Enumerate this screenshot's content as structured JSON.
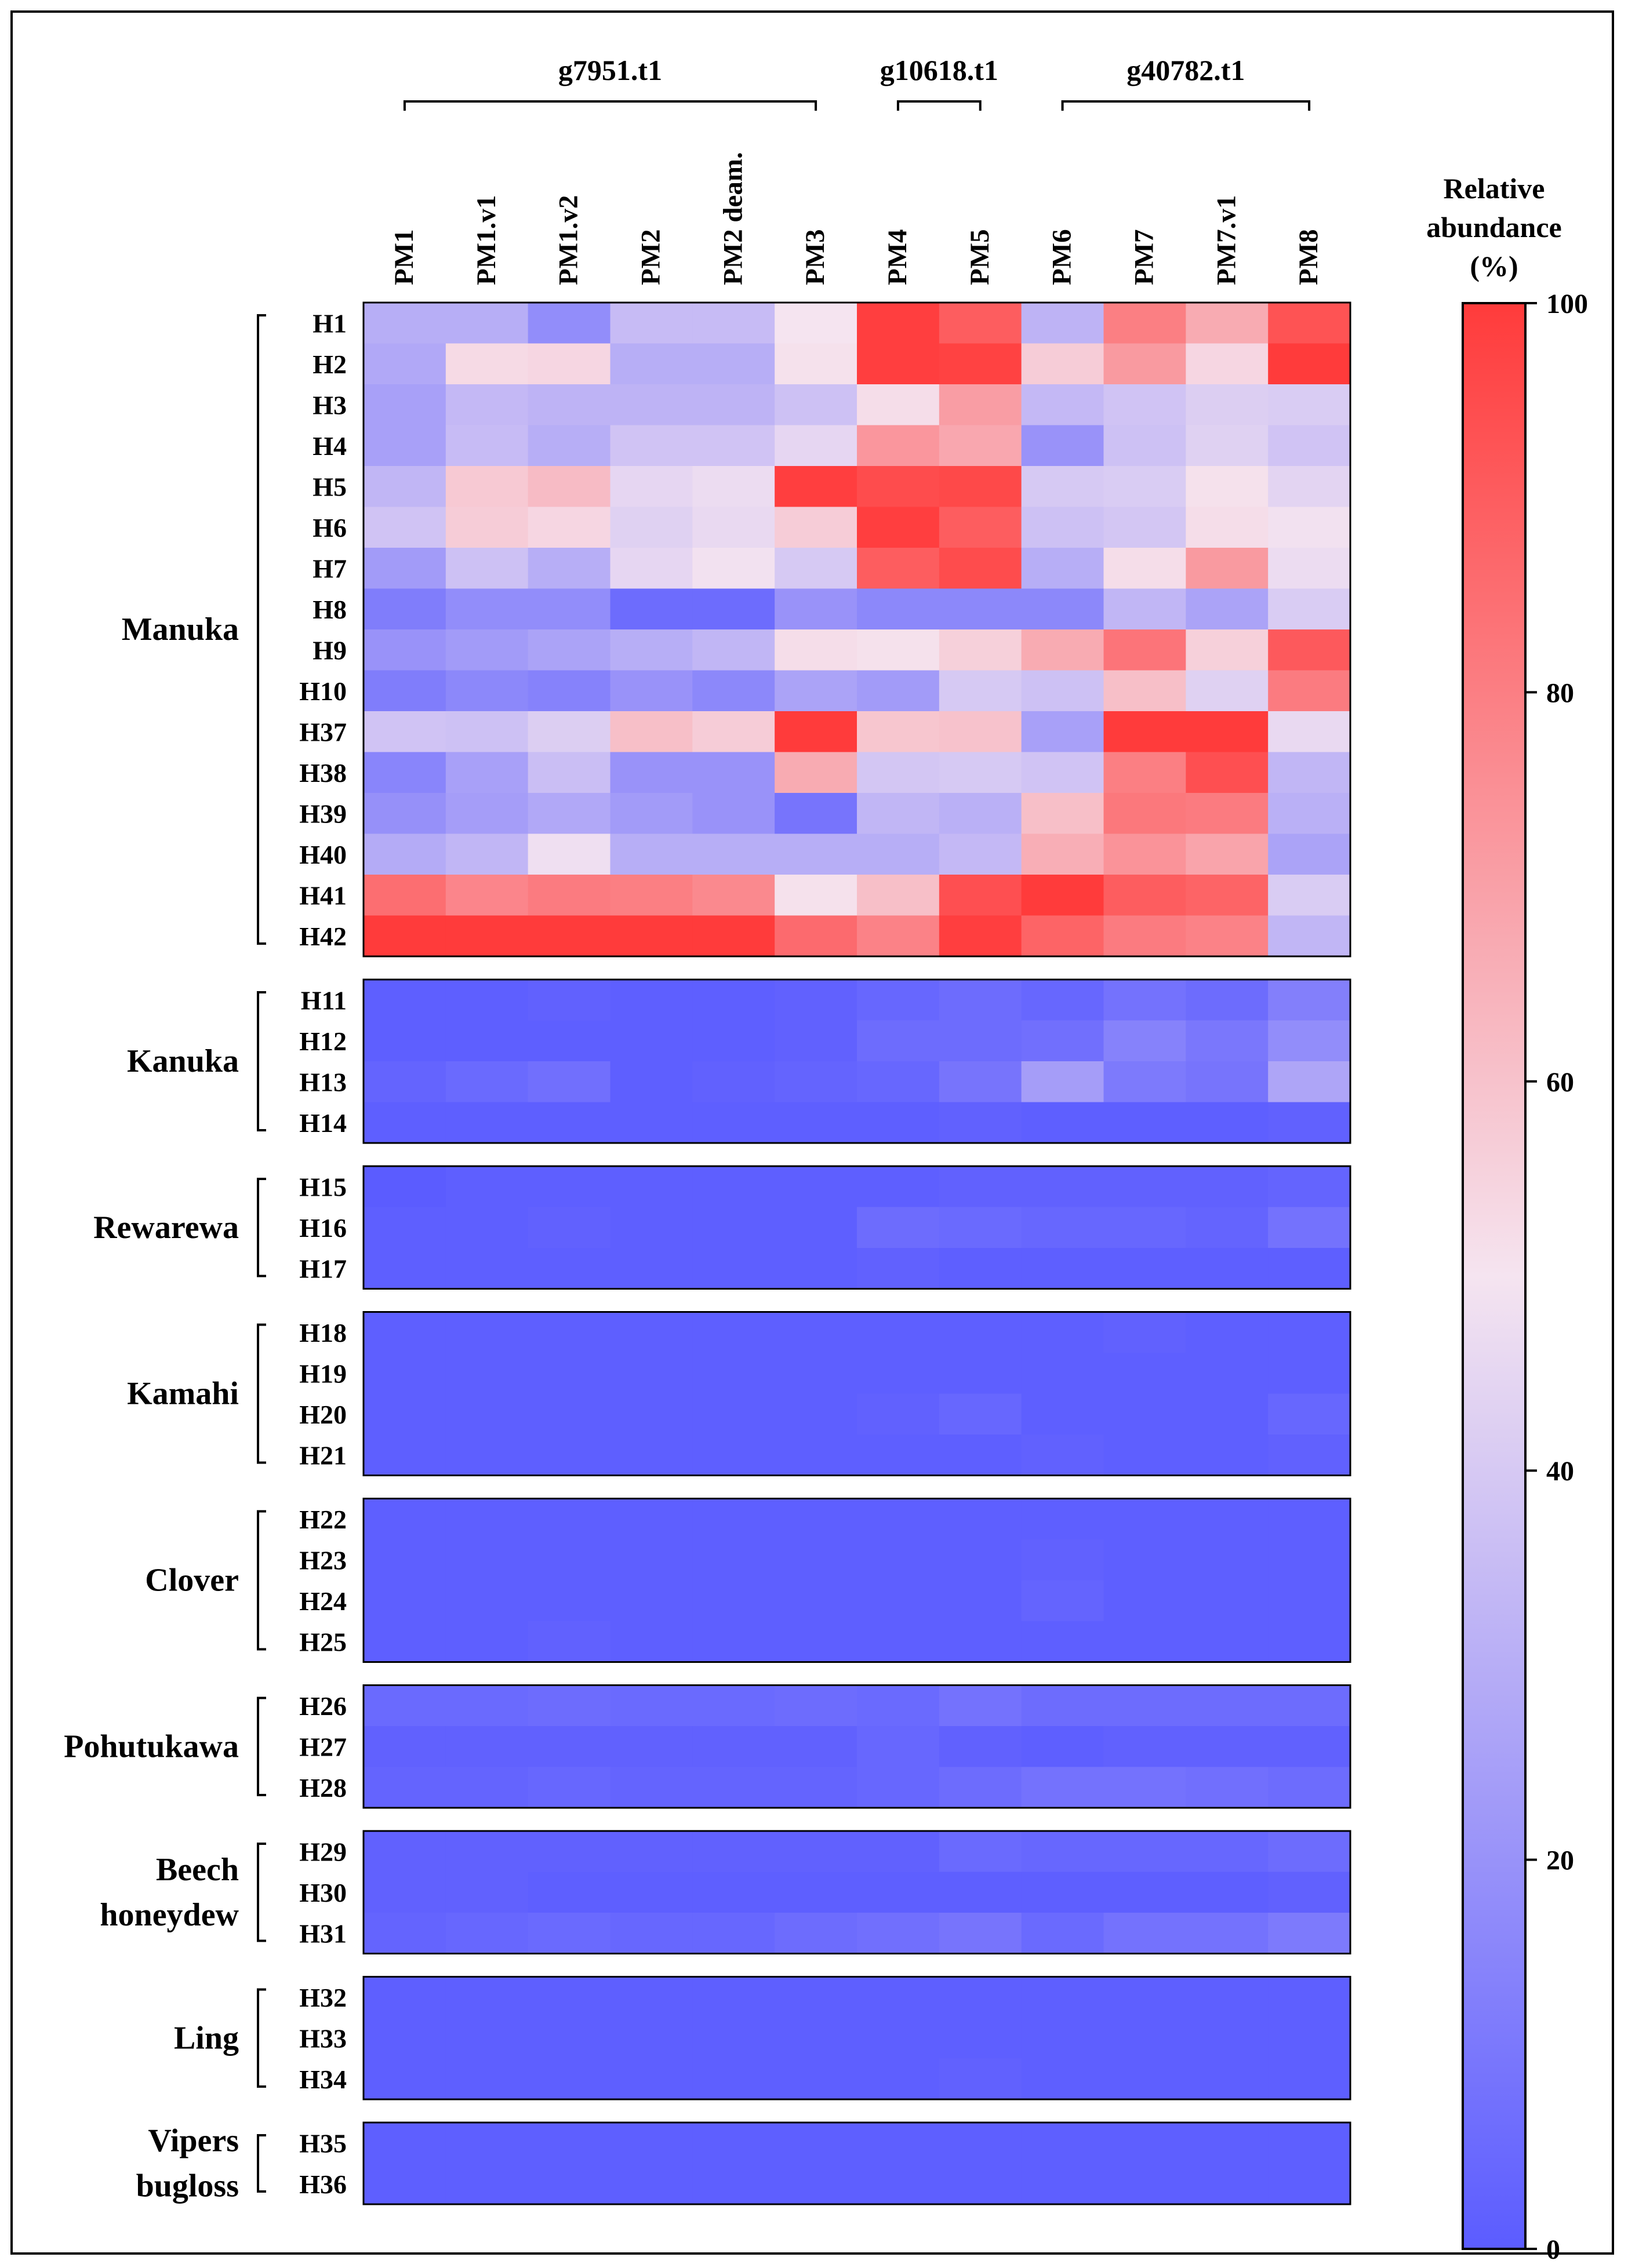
{
  "chart_data": {
    "type": "heatmap",
    "columns": [
      "PM1",
      "PM1.v1",
      "PM1.v2",
      "PM2",
      "PM2 deam.",
      "PM3",
      "PM4",
      "PM5",
      "PM6",
      "PM7",
      "PM7.v1",
      "PM8"
    ],
    "column_groups": [
      {
        "label": "g7951.t1",
        "columns": [
          "PM1",
          "PM1.v1",
          "PM1.v2",
          "PM2",
          "PM2 deam.",
          "PM3"
        ]
      },
      {
        "label": "g10618.t1",
        "columns": [
          "PM4",
          "PM5"
        ]
      },
      {
        "label": "g40782.t1",
        "columns": [
          "PM6",
          "PM7",
          "PM7.v1",
          "PM8"
        ]
      }
    ],
    "colorbar": {
      "title_lines": [
        "Relative",
        "abundance",
        "(%)"
      ],
      "ticks": [
        0,
        20,
        40,
        60,
        80,
        100
      ],
      "range": [
        0,
        100
      ],
      "colors": {
        "low": "#5b5cff",
        "mid": "#f5e4f0",
        "high": "#ff3b3b"
      }
    },
    "groups": [
      {
        "label_lines": [
          "Manuka"
        ],
        "rows": [
          {
            "label": "H1",
            "values": [
              30,
              30,
              18,
              35,
              35,
              50,
              99,
              90,
              32,
              80,
              67,
              93
            ]
          },
          {
            "label": "H2",
            "values": [
              28,
              53,
              54,
              30,
              30,
              51,
              99,
              98,
              57,
              72,
              54,
              100
            ]
          },
          {
            "label": "H3",
            "values": [
              25,
              34,
              32,
              32,
              32,
              37,
              52,
              71,
              34,
              38,
              42,
              41
            ]
          },
          {
            "label": "H4",
            "values": [
              25,
              35,
              30,
              38,
              38,
              45,
              73,
              68,
              20,
              37,
              43,
              38
            ]
          },
          {
            "label": "H5",
            "values": [
              33,
              58,
              62,
              45,
              47,
              99,
              95,
              96,
              40,
              41,
              51,
              44
            ]
          },
          {
            "label": "H6",
            "values": [
              38,
              57,
              54,
              43,
              46,
              57,
              99,
              90,
              37,
              39,
              52,
              49
            ]
          },
          {
            "label": "H7",
            "values": [
              23,
              37,
              30,
              45,
              49,
              40,
              90,
              95,
              30,
              52,
              72,
              47
            ]
          },
          {
            "label": "H8",
            "values": [
              12,
              18,
              18,
              6,
              6,
              20,
              16,
              16,
              16,
              33,
              26,
              41
            ]
          },
          {
            "label": "H9",
            "values": [
              20,
              23,
              26,
              30,
              33,
              52,
              51,
              56,
              67,
              83,
              56,
              91
            ]
          },
          {
            "label": "H10",
            "values": [
              12,
              16,
              14,
              20,
              16,
              26,
              23,
              40,
              37,
              61,
              43,
              81
            ]
          },
          {
            "label": "H37",
            "values": [
              38,
              37,
              42,
              61,
              57,
              100,
              59,
              60,
              25,
              100,
              100,
              46
            ]
          },
          {
            "label": "H38",
            "values": [
              15,
              25,
              36,
              20,
              20,
              67,
              39,
              40,
              38,
              80,
              94,
              33
            ]
          },
          {
            "label": "H39",
            "values": [
              19,
              24,
              28,
              23,
              20,
              9,
              33,
              31,
              61,
              82,
              81,
              31
            ]
          },
          {
            "label": "H40",
            "values": [
              29,
              33,
              48,
              30,
              30,
              30,
              30,
              34,
              66,
              74,
              69,
              26
            ]
          },
          {
            "label": "H41",
            "values": [
              85,
              78,
              81,
              80,
              77,
              51,
              61,
              94,
              100,
              90,
              88,
              41
            ]
          },
          {
            "label": "H42",
            "values": [
              100,
              100,
              100,
              100,
              100,
              86,
              79,
              99,
              88,
              81,
              79,
              33
            ]
          }
        ]
      },
      {
        "label_lines": [
          "Kanuka"
        ],
        "rows": [
          {
            "label": "H11",
            "values": [
              1,
              1,
              2,
              1,
              1,
              2,
              4,
              6,
              4,
              8,
              6,
              13
            ]
          },
          {
            "label": "H12",
            "values": [
              1,
              1,
              1,
              1,
              1,
              2,
              6,
              6,
              7,
              14,
              10,
              18
            ]
          },
          {
            "label": "H13",
            "values": [
              3,
              5,
              7,
              1,
              2,
              3,
              4,
              9,
              24,
              11,
              9,
              27
            ]
          },
          {
            "label": "H14",
            "values": [
              1,
              1,
              1,
              1,
              1,
              1,
              1,
              2,
              1,
              1,
              1,
              2
            ]
          }
        ]
      },
      {
        "label_lines": [
          "Rewarewa"
        ],
        "rows": [
          {
            "label": "H15",
            "values": [
              0,
              1,
              1,
              1,
              1,
              1,
              1,
              2,
              2,
              2,
              2,
              3
            ]
          },
          {
            "label": "H16",
            "values": [
              1,
              1,
              2,
              1,
              1,
              1,
              6,
              5,
              4,
              4,
              3,
              8
            ]
          },
          {
            "label": "H17",
            "values": [
              1,
              1,
              1,
              1,
              1,
              1,
              2,
              1,
              1,
              1,
              1,
              1
            ]
          }
        ]
      },
      {
        "label_lines": [
          "Kamahi"
        ],
        "rows": [
          {
            "label": "H18",
            "values": [
              1,
              1,
              1,
              1,
              1,
              1,
              1,
              1,
              1,
              2,
              1,
              1
            ]
          },
          {
            "label": "H19",
            "values": [
              1,
              1,
              1,
              1,
              1,
              1,
              1,
              1,
              1,
              1,
              1,
              1
            ]
          },
          {
            "label": "H20",
            "values": [
              1,
              1,
              1,
              1,
              1,
              1,
              2,
              4,
              1,
              1,
              1,
              4
            ]
          },
          {
            "label": "H21",
            "values": [
              1,
              1,
              1,
              1,
              1,
              1,
              1,
              1,
              2,
              1,
              1,
              2
            ]
          }
        ]
      },
      {
        "label_lines": [
          "Clover"
        ],
        "rows": [
          {
            "label": "H22",
            "values": [
              1,
              1,
              1,
              1,
              1,
              1,
              1,
              1,
              1,
              1,
              1,
              1
            ]
          },
          {
            "label": "H23",
            "values": [
              1,
              1,
              1,
              1,
              1,
              1,
              1,
              1,
              2,
              1,
              1,
              1
            ]
          },
          {
            "label": "H24",
            "values": [
              1,
              1,
              1,
              1,
              1,
              1,
              1,
              1,
              3,
              1,
              1,
              1
            ]
          },
          {
            "label": "H25",
            "values": [
              1,
              1,
              2,
              1,
              1,
              1,
              1,
              1,
              1,
              1,
              1,
              1
            ]
          }
        ]
      },
      {
        "label_lines": [
          "Pohutukawa"
        ],
        "rows": [
          {
            "label": "H26",
            "values": [
              5,
              5,
              6,
              5,
              5,
              6,
              5,
              8,
              6,
              6,
              6,
              6
            ]
          },
          {
            "label": "H27",
            "values": [
              2,
              2,
              2,
              2,
              2,
              2,
              4,
              2,
              1,
              2,
              2,
              2
            ]
          },
          {
            "label": "H28",
            "values": [
              3,
              3,
              4,
              3,
              3,
              3,
              4,
              6,
              8,
              8,
              7,
              6
            ]
          }
        ]
      },
      {
        "label_lines": [
          "Beech",
          "honeydew"
        ],
        "rows": [
          {
            "label": "H29",
            "values": [
              2,
              2,
              2,
              2,
              2,
              2,
              2,
              5,
              4,
              4,
              4,
              6
            ]
          },
          {
            "label": "H30",
            "values": [
              2,
              2,
              1,
              1,
              1,
              1,
              1,
              1,
              1,
              1,
              1,
              2
            ]
          },
          {
            "label": "H31",
            "values": [
              3,
              4,
              5,
              4,
              4,
              6,
              7,
              9,
              5,
              8,
              8,
              11
            ]
          }
        ]
      },
      {
        "label_lines": [
          "Ling"
        ],
        "rows": [
          {
            "label": "H32",
            "values": [
              1,
              1,
              1,
              1,
              1,
              1,
              1,
              1,
              1,
              1,
              1,
              1
            ]
          },
          {
            "label": "H33",
            "values": [
              1,
              1,
              1,
              1,
              1,
              1,
              1,
              1,
              1,
              1,
              1,
              1
            ]
          },
          {
            "label": "H34",
            "values": [
              1,
              1,
              1,
              1,
              1,
              1,
              1,
              2,
              1,
              1,
              1,
              1
            ]
          }
        ]
      },
      {
        "label_lines": [
          "Vipers",
          "bugloss"
        ],
        "rows": [
          {
            "label": "H35",
            "values": [
              1,
              1,
              1,
              1,
              1,
              1,
              1,
              1,
              1,
              1,
              1,
              1
            ]
          },
          {
            "label": "H36",
            "values": [
              1,
              1,
              1,
              1,
              1,
              1,
              1,
              1,
              1,
              1,
              1,
              1
            ]
          }
        ]
      }
    ]
  }
}
